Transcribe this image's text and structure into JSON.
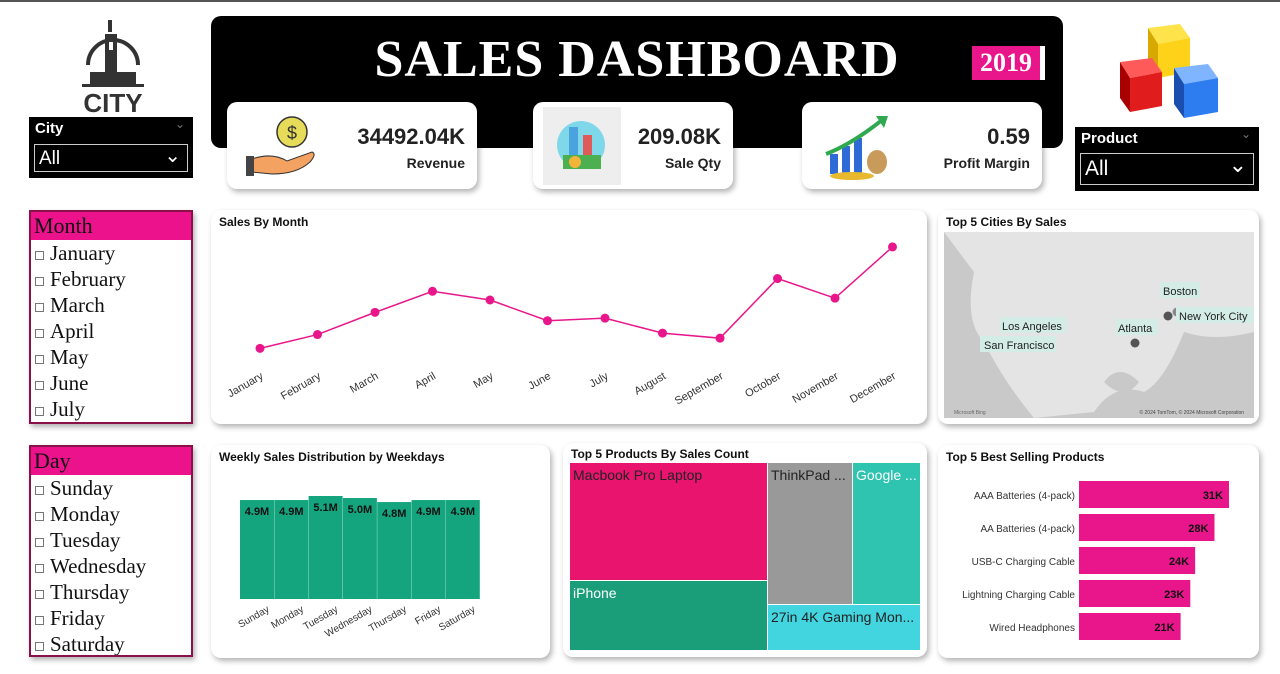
{
  "header": {
    "title": "SALES DASHBOARD",
    "year": "2019",
    "city_logo_text": "CITY"
  },
  "kpis": [
    {
      "value": "34492.04K",
      "label": "Revenue",
      "icon": "money-hand-icon"
    },
    {
      "value": "209.08K",
      "label": "Sale Qty",
      "icon": "money-chart-icon"
    },
    {
      "value": "0.59",
      "label": "Profit Margin",
      "icon": "growth-chart-icon"
    }
  ],
  "city_slicer": {
    "label": "City",
    "value": "All"
  },
  "product_slicer": {
    "label": "Product",
    "value": "All"
  },
  "month_slicer": {
    "header": "Month",
    "items": [
      "January",
      "February",
      "March",
      "April",
      "May",
      "June",
      "July"
    ]
  },
  "day_slicer": {
    "header": "Day",
    "items": [
      "Sunday",
      "Monday",
      "Tuesday",
      "Wednesday",
      "Thursday",
      "Friday",
      "Saturday"
    ]
  },
  "map": {
    "title": "Top 5 Cities By Sales",
    "cities": [
      "Boston",
      "New York City",
      "Los Angeles",
      "Atlanta",
      "San Francisco"
    ],
    "attribution": "© 2024 TomTom, © 2024 Microsoft Corporation",
    "brand": "Microsoft Bing"
  },
  "colors": {
    "accent": "#e8168a",
    "green": "#14a57e",
    "grey": "#9b9b9b",
    "teal": "#2ec4b6",
    "cyan": "#44d4e0"
  },
  "chart_data": [
    {
      "type": "line",
      "title": "Sales By Month",
      "categories": [
        "January",
        "February",
        "March",
        "April",
        "May",
        "June",
        "July",
        "August",
        "September",
        "October",
        "November",
        "December"
      ],
      "values": [
        1.82,
        2.2,
        2.81,
        3.39,
        3.15,
        2.58,
        2.65,
        2.24,
        2.1,
        3.74,
        3.2,
        4.61
      ]
    },
    {
      "type": "bar",
      "title": "Weekly Sales Distribution by Weekdays",
      "categories": [
        "Sunday",
        "Monday",
        "Tuesday",
        "Wednesday",
        "Thursday",
        "Friday",
        "Saturday"
      ],
      "values": [
        4.9,
        4.9,
        5.1,
        5.0,
        4.8,
        4.9,
        4.9
      ],
      "labels": [
        "4.9M",
        "4.9M",
        "5.1M",
        "5.0M",
        "4.8M",
        "4.9M",
        "4.9M"
      ]
    },
    {
      "type": "treemap",
      "title": "Top 5 Products By Sales Count",
      "categories": [
        "Macbook Pro Laptop",
        "iPhone",
        "ThinkPad ...",
        "Google ...",
        "27in 4K Gaming Mon..."
      ]
    },
    {
      "type": "bar",
      "orientation": "horizontal",
      "title": "Top 5 Best Selling Products",
      "categories": [
        "AAA Batteries (4-pack)",
        "AA Batteries (4-pack)",
        "USB-C Charging Cable",
        "Lightning Charging Cable",
        "Wired Headphones"
      ],
      "values": [
        31,
        28,
        24,
        23,
        21
      ],
      "labels": [
        "31K",
        "28K",
        "24K",
        "23K",
        "21K"
      ]
    }
  ]
}
